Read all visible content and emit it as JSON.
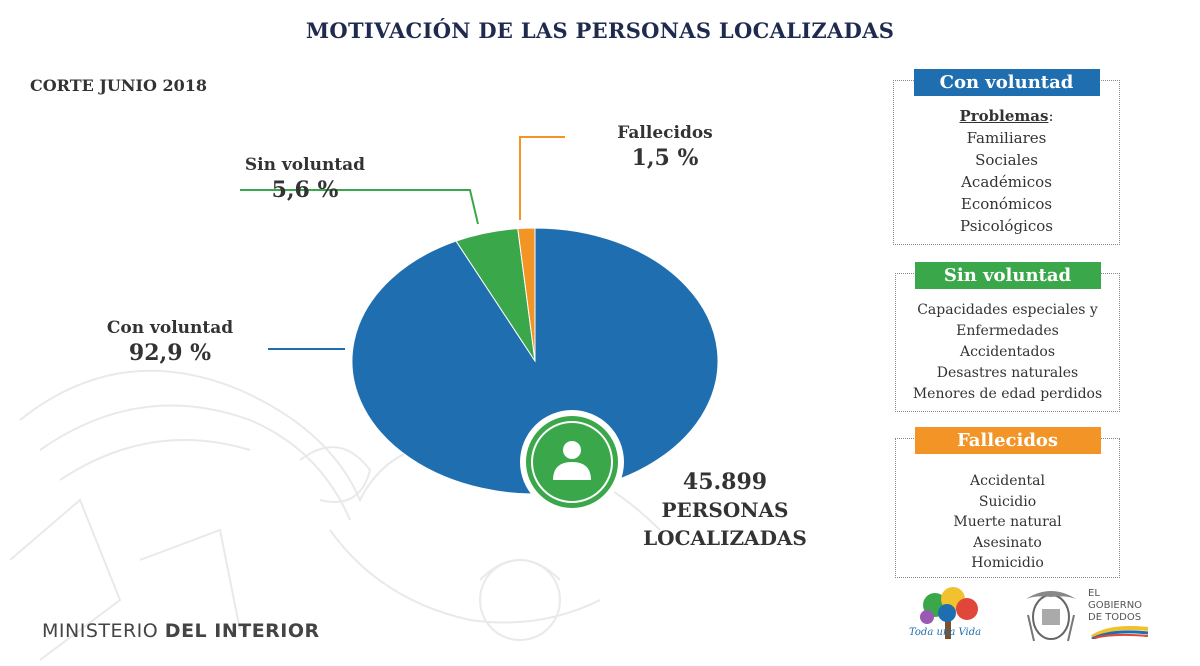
{
  "title": "MOTIVACIÓN DE LAS PERSONAS LOCALIZADAS",
  "subtitle": "CORTE JUNIO 2018",
  "chart_data": {
    "type": "pie",
    "title": "MOTIVACIÓN DE LAS PERSONAS LOCALIZADAS",
    "slices": [
      {
        "name": "Con voluntad",
        "label": "92,9 %",
        "value": 92.9,
        "color": "#1f6fb0"
      },
      {
        "name": "Sin voluntad",
        "label": "5,6 %",
        "value": 5.6,
        "color": "#3aa84a"
      },
      {
        "name": "Fallecidos",
        "label": "1,5 %",
        "value": 1.5,
        "color": "#f29426"
      }
    ],
    "total": {
      "value": "45.899",
      "text_line1": "PERSONAS",
      "text_line2": "LOCALIZADAS"
    }
  },
  "panels": {
    "con_voluntad": {
      "header": "Con voluntad",
      "color": "#1f6fb0",
      "subheader": "Problemas",
      "subheader_suffix": ":",
      "items": [
        "Familiares",
        "Sociales",
        "Académicos",
        "Económicos",
        "Psicológicos"
      ]
    },
    "sin_voluntad": {
      "header": "Sin voluntad",
      "color": "#3aa84a",
      "items": [
        "Capacidades especiales y",
        "Enfermedades",
        "Accidentados",
        "Desastres naturales",
        "Menores de edad perdidos"
      ]
    },
    "fallecidos": {
      "header": "Fallecidos",
      "color": "#f29426",
      "items": [
        "Accidental",
        "Suicidio",
        "Muerte natural",
        "Asesinato",
        "Homicidio"
      ]
    }
  },
  "footer": {
    "ministry_light": "MINISTERIO ",
    "ministry_bold": "DEL INTERIOR",
    "logo_toda_una_vida": "Toda una Vida",
    "gobierno_line1": "EL",
    "gobierno_line2": "GOBIERNO",
    "gobierno_line3": "DE TODOS"
  },
  "icons": {
    "person": "person-icon",
    "coat_of_arms": "coat-of-arms-icon",
    "tree_logo": "tree-logo-icon"
  }
}
